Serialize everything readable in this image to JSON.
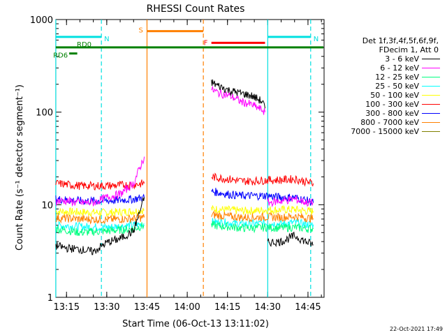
{
  "chart_data": {
    "type": "line",
    "title": "RHESSI Count Rates",
    "xlabel": "Start Time (06-Oct-13 13:11:02)",
    "ylabel": "Count Rate (s⁻¹ detector segment⁻¹)",
    "x_unit": "minutes",
    "xlim": [
      "13:11:02",
      "14:51:00"
    ],
    "ylim": [
      1,
      1000
    ],
    "yscale": "log",
    "x_ticks": [
      "13:15",
      "13:30",
      "13:45",
      "14:00",
      "14:15",
      "14:30",
      "14:45"
    ],
    "y_ticks": [
      "1",
      "10",
      "100",
      "1000"
    ],
    "gap": [
      "13:45",
      "14:08"
    ],
    "legend_placement": "right",
    "legend_header": [
      "Det 1f,3f,4f,5f,6f,9f,",
      "FDecim 1, Att 0"
    ],
    "series": [
      {
        "name": "3 - 6 keV",
        "color": "#000000",
        "segment1": {
          "x": [
            "13:11",
            "13:15",
            "13:20",
            "13:25",
            "13:30",
            "13:35",
            "13:40",
            "13:44"
          ],
          "y": [
            3.6,
            3.4,
            3.3,
            3.1,
            3.9,
            4.3,
            5.2,
            12
          ]
        },
        "segment2": {
          "x": [
            "14:09",
            "14:12",
            "14:16",
            "14:20",
            "14:24",
            "14:28",
            "14:29"
          ],
          "y": [
            210,
            190,
            170,
            160,
            150,
            130,
            110
          ]
        },
        "segment3": {
          "x": [
            "14:30",
            "14:35",
            "14:40",
            "14:45",
            "14:47"
          ],
          "y": [
            3.9,
            4.0,
            4.6,
            3.9,
            3.7
          ]
        }
      },
      {
        "name": "6 - 12 keV",
        "color": "#ff00ff",
        "segment1": {
          "x": [
            "13:11",
            "13:15",
            "13:20",
            "13:25",
            "13:30",
            "13:35",
            "13:40",
            "13:44"
          ],
          "y": [
            11,
            11,
            10.5,
            10.5,
            12,
            13,
            17,
            33
          ]
        },
        "segment2": {
          "x": [
            "14:09",
            "14:12",
            "14:16",
            "14:20",
            "14:24",
            "14:28",
            "14:29"
          ],
          "y": [
            175,
            160,
            150,
            130,
            120,
            105,
            100
          ]
        },
        "segment3": {
          "x": [
            "14:30",
            "14:35",
            "14:40",
            "14:45",
            "14:47"
          ],
          "y": [
            10.5,
            11,
            11.5,
            10.5,
            10.5
          ]
        }
      },
      {
        "name": "12 - 25 keV",
        "color": "#00ff80",
        "segment1": {
          "x": [
            "13:11",
            "13:20",
            "13:30",
            "13:40",
            "13:44"
          ],
          "y": [
            5.5,
            5.0,
            5.2,
            5.5,
            6.0
          ]
        },
        "segment2": {
          "x": [
            "14:09",
            "14:15",
            "14:20",
            "14:25",
            "14:30",
            "14:35",
            "14:40",
            "14:45",
            "14:47"
          ],
          "y": [
            6.0,
            5.8,
            5.6,
            5.6,
            5.7,
            5.6,
            5.7,
            5.5,
            5.5
          ]
        }
      },
      {
        "name": "25 - 50 keV",
        "color": "#00ffff",
        "segment1": {
          "x": [
            "13:11",
            "13:20",
            "13:30",
            "13:40",
            "13:44"
          ],
          "y": [
            6.0,
            5.8,
            5.7,
            6.0,
            6.2
          ]
        },
        "segment2": {
          "x": [
            "14:09",
            "14:15",
            "14:20",
            "14:25",
            "14:30",
            "14:35",
            "14:40",
            "14:45",
            "14:47"
          ],
          "y": [
            6.5,
            6.4,
            6.2,
            6.2,
            6.3,
            6.2,
            6.4,
            6.1,
            6.1
          ]
        }
      },
      {
        "name": "50 - 100 keV",
        "color": "#ffff00",
        "segment1": {
          "x": [
            "13:11",
            "13:20",
            "13:30",
            "13:40",
            "13:44"
          ],
          "y": [
            8.5,
            8.3,
            8.2,
            8.5,
            8.8
          ]
        },
        "segment2": {
          "x": [
            "14:09",
            "14:15",
            "14:20",
            "14:25",
            "14:30",
            "14:35",
            "14:40",
            "14:45",
            "14:47"
          ],
          "y": [
            9.0,
            8.8,
            8.6,
            8.6,
            8.8,
            8.8,
            8.9,
            8.5,
            8.5
          ]
        }
      },
      {
        "name": "100 - 300 keV",
        "color": "#ff0000",
        "segment1": {
          "x": [
            "13:11",
            "13:20",
            "13:30",
            "13:40",
            "13:44"
          ],
          "y": [
            17,
            16,
            16,
            16.5,
            17
          ]
        },
        "segment2": {
          "x": [
            "14:09",
            "14:15",
            "14:20",
            "14:25",
            "14:30",
            "14:35",
            "14:40",
            "14:45",
            "14:47"
          ],
          "y": [
            20,
            19,
            18,
            18,
            18.5,
            18.5,
            19,
            17.5,
            17
          ]
        }
      },
      {
        "name": "300 - 800 keV",
        "color": "#0000ff",
        "segment1": {
          "x": [
            "13:11",
            "13:20",
            "13:30",
            "13:40",
            "13:44"
          ],
          "y": [
            11.5,
            11,
            11,
            11.5,
            12
          ]
        },
        "segment2": {
          "x": [
            "14:09",
            "14:15",
            "14:20",
            "14:25",
            "14:30",
            "14:35",
            "14:40",
            "14:45",
            "14:47"
          ],
          "y": [
            14,
            13,
            12.5,
            12.5,
            12.5,
            12,
            12,
            11,
            10.5
          ]
        }
      },
      {
        "name": "800 - 7000 keV",
        "color": "#ff8000",
        "segment1": {
          "x": [
            "13:11",
            "13:20",
            "13:30",
            "13:40",
            "13:44"
          ],
          "y": [
            7.2,
            7.0,
            6.9,
            7.1,
            7.3
          ]
        },
        "segment2": {
          "x": [
            "14:09",
            "14:15",
            "14:20",
            "14:25",
            "14:30",
            "14:35",
            "14:40",
            "14:45",
            "14:47"
          ],
          "y": [
            7.8,
            7.5,
            7.3,
            7.3,
            7.4,
            7.3,
            7.5,
            7.2,
            7.1
          ]
        }
      },
      {
        "name": "7000 - 15000 keV",
        "color": "#808000",
        "segment1": {
          "x": [],
          "y": []
        },
        "segment2": {
          "x": [],
          "y": []
        }
      }
    ],
    "annotations": [
      {
        "label": "N",
        "color": "#00e0e0",
        "type": "night",
        "x_start": "13:11",
        "x_end": "13:28",
        "y": 650
      },
      {
        "label": "N",
        "color": "#00e0e0",
        "type": "night",
        "x_start": "14:30",
        "x_end": "14:46",
        "y": 650
      },
      {
        "label": "S",
        "color": "#ff8000",
        "type": "saa",
        "x_start": "13:45",
        "x_end": "14:06",
        "y": 750
      },
      {
        "label": "F",
        "color": "#ff0000",
        "type": "flare",
        "x_start": "14:09",
        "x_end": "14:29",
        "y": 560
      },
      {
        "label": "RD0",
        "color": "#008000",
        "type": "decim",
        "x_start": "13:11",
        "x_end": "14:51",
        "y": 500
      },
      {
        "label": "RD6",
        "color": "#008000",
        "type": "decim",
        "x_start": "13:16",
        "x_end": "13:19",
        "y": 430
      }
    ],
    "vlines": [
      {
        "x": "13:11",
        "color": "#00e0e0",
        "style": "solid"
      },
      {
        "x": "13:28",
        "color": "#00e0e0",
        "style": "dashed"
      },
      {
        "x": "13:45",
        "color": "#ff8000",
        "style": "solid"
      },
      {
        "x": "14:06",
        "color": "#ff8000",
        "style": "dashed"
      },
      {
        "x": "14:30",
        "color": "#00e0e0",
        "style": "solid"
      },
      {
        "x": "14:46",
        "color": "#00e0e0",
        "style": "dashed"
      }
    ]
  },
  "timestamp": "22-Oct-2021 17:49"
}
